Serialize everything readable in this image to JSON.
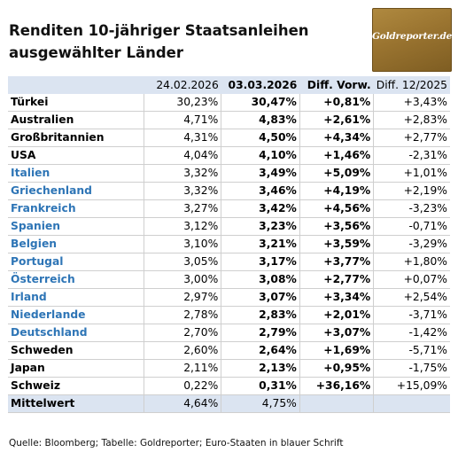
{
  "title_line1": "Renditen 10-jähriger Staatsanleihen",
  "title_line2": "ausgewählter Länder",
  "logo_text": "Goldreporter.de",
  "headers": [
    "",
    "24.02.2026",
    "03.03.2026",
    "Diff. Vorw.",
    "Diff. 12/2025"
  ],
  "rows": [
    {
      "name": "Türkei",
      "euro": false,
      "v1": "30,23%",
      "v2": "30,47%",
      "v3": "+0,81%",
      "v4": "+3,43%"
    },
    {
      "name": "Australien",
      "euro": false,
      "v1": "4,71%",
      "v2": "4,83%",
      "v3": "+2,61%",
      "v4": "+2,83%"
    },
    {
      "name": "Großbritannien",
      "euro": false,
      "v1": "4,31%",
      "v2": "4,50%",
      "v3": "+4,34%",
      "v4": "+2,77%"
    },
    {
      "name": "USA",
      "euro": false,
      "v1": "4,04%",
      "v2": "4,10%",
      "v3": "+1,46%",
      "v4": "-2,31%"
    },
    {
      "name": "Italien",
      "euro": true,
      "v1": "3,32%",
      "v2": "3,49%",
      "v3": "+5,09%",
      "v4": "+1,01%"
    },
    {
      "name": "Griechenland",
      "euro": true,
      "v1": "3,32%",
      "v2": "3,46%",
      "v3": "+4,19%",
      "v4": "+2,19%"
    },
    {
      "name": "Frankreich",
      "euro": true,
      "v1": "3,27%",
      "v2": "3,42%",
      "v3": "+4,56%",
      "v4": "-3,23%"
    },
    {
      "name": "Spanien",
      "euro": true,
      "v1": "3,12%",
      "v2": "3,23%",
      "v3": "+3,56%",
      "v4": "-0,71%"
    },
    {
      "name": "Belgien",
      "euro": true,
      "v1": "3,10%",
      "v2": "3,21%",
      "v3": "+3,59%",
      "v4": "-3,29%"
    },
    {
      "name": "Portugal",
      "euro": true,
      "v1": "3,05%",
      "v2": "3,17%",
      "v3": "+3,77%",
      "v4": "+1,80%"
    },
    {
      "name": "Österreich",
      "euro": true,
      "v1": "3,00%",
      "v2": "3,08%",
      "v3": "+2,77%",
      "v4": "+0,07%"
    },
    {
      "name": "Irland",
      "euro": true,
      "v1": "2,97%",
      "v2": "3,07%",
      "v3": "+3,34%",
      "v4": "+2,54%"
    },
    {
      "name": "Niederlande",
      "euro": true,
      "v1": "2,78%",
      "v2": "2,83%",
      "v3": "+2,01%",
      "v4": "-3,71%"
    },
    {
      "name": "Deutschland",
      "euro": true,
      "v1": "2,70%",
      "v2": "2,79%",
      "v3": "+3,07%",
      "v4": "-1,42%"
    },
    {
      "name": "Schweden",
      "euro": false,
      "v1": "2,60%",
      "v2": "2,64%",
      "v3": "+1,69%",
      "v4": "-5,71%"
    },
    {
      "name": "Japan",
      "euro": false,
      "v1": "2,11%",
      "v2": "2,13%",
      "v3": "+0,95%",
      "v4": "-1,75%"
    },
    {
      "name": "Schweiz",
      "euro": false,
      "v1": "0,22%",
      "v2": "0,31%",
      "v3": "+36,16%",
      "v4": "+15,09%"
    }
  ],
  "mean": {
    "name": "Mittelwert",
    "v1": "4,64%",
    "v2": "4,75%",
    "v3": "",
    "v4": ""
  },
  "footnote": "Quelle: Bloomberg; Tabelle: Goldreporter; Euro-Staaten in blauer Schrift",
  "colors": {
    "euro_text": "#2e75b6",
    "header_bg": "#dbe4f1",
    "logo_gold": "#9a7430"
  }
}
